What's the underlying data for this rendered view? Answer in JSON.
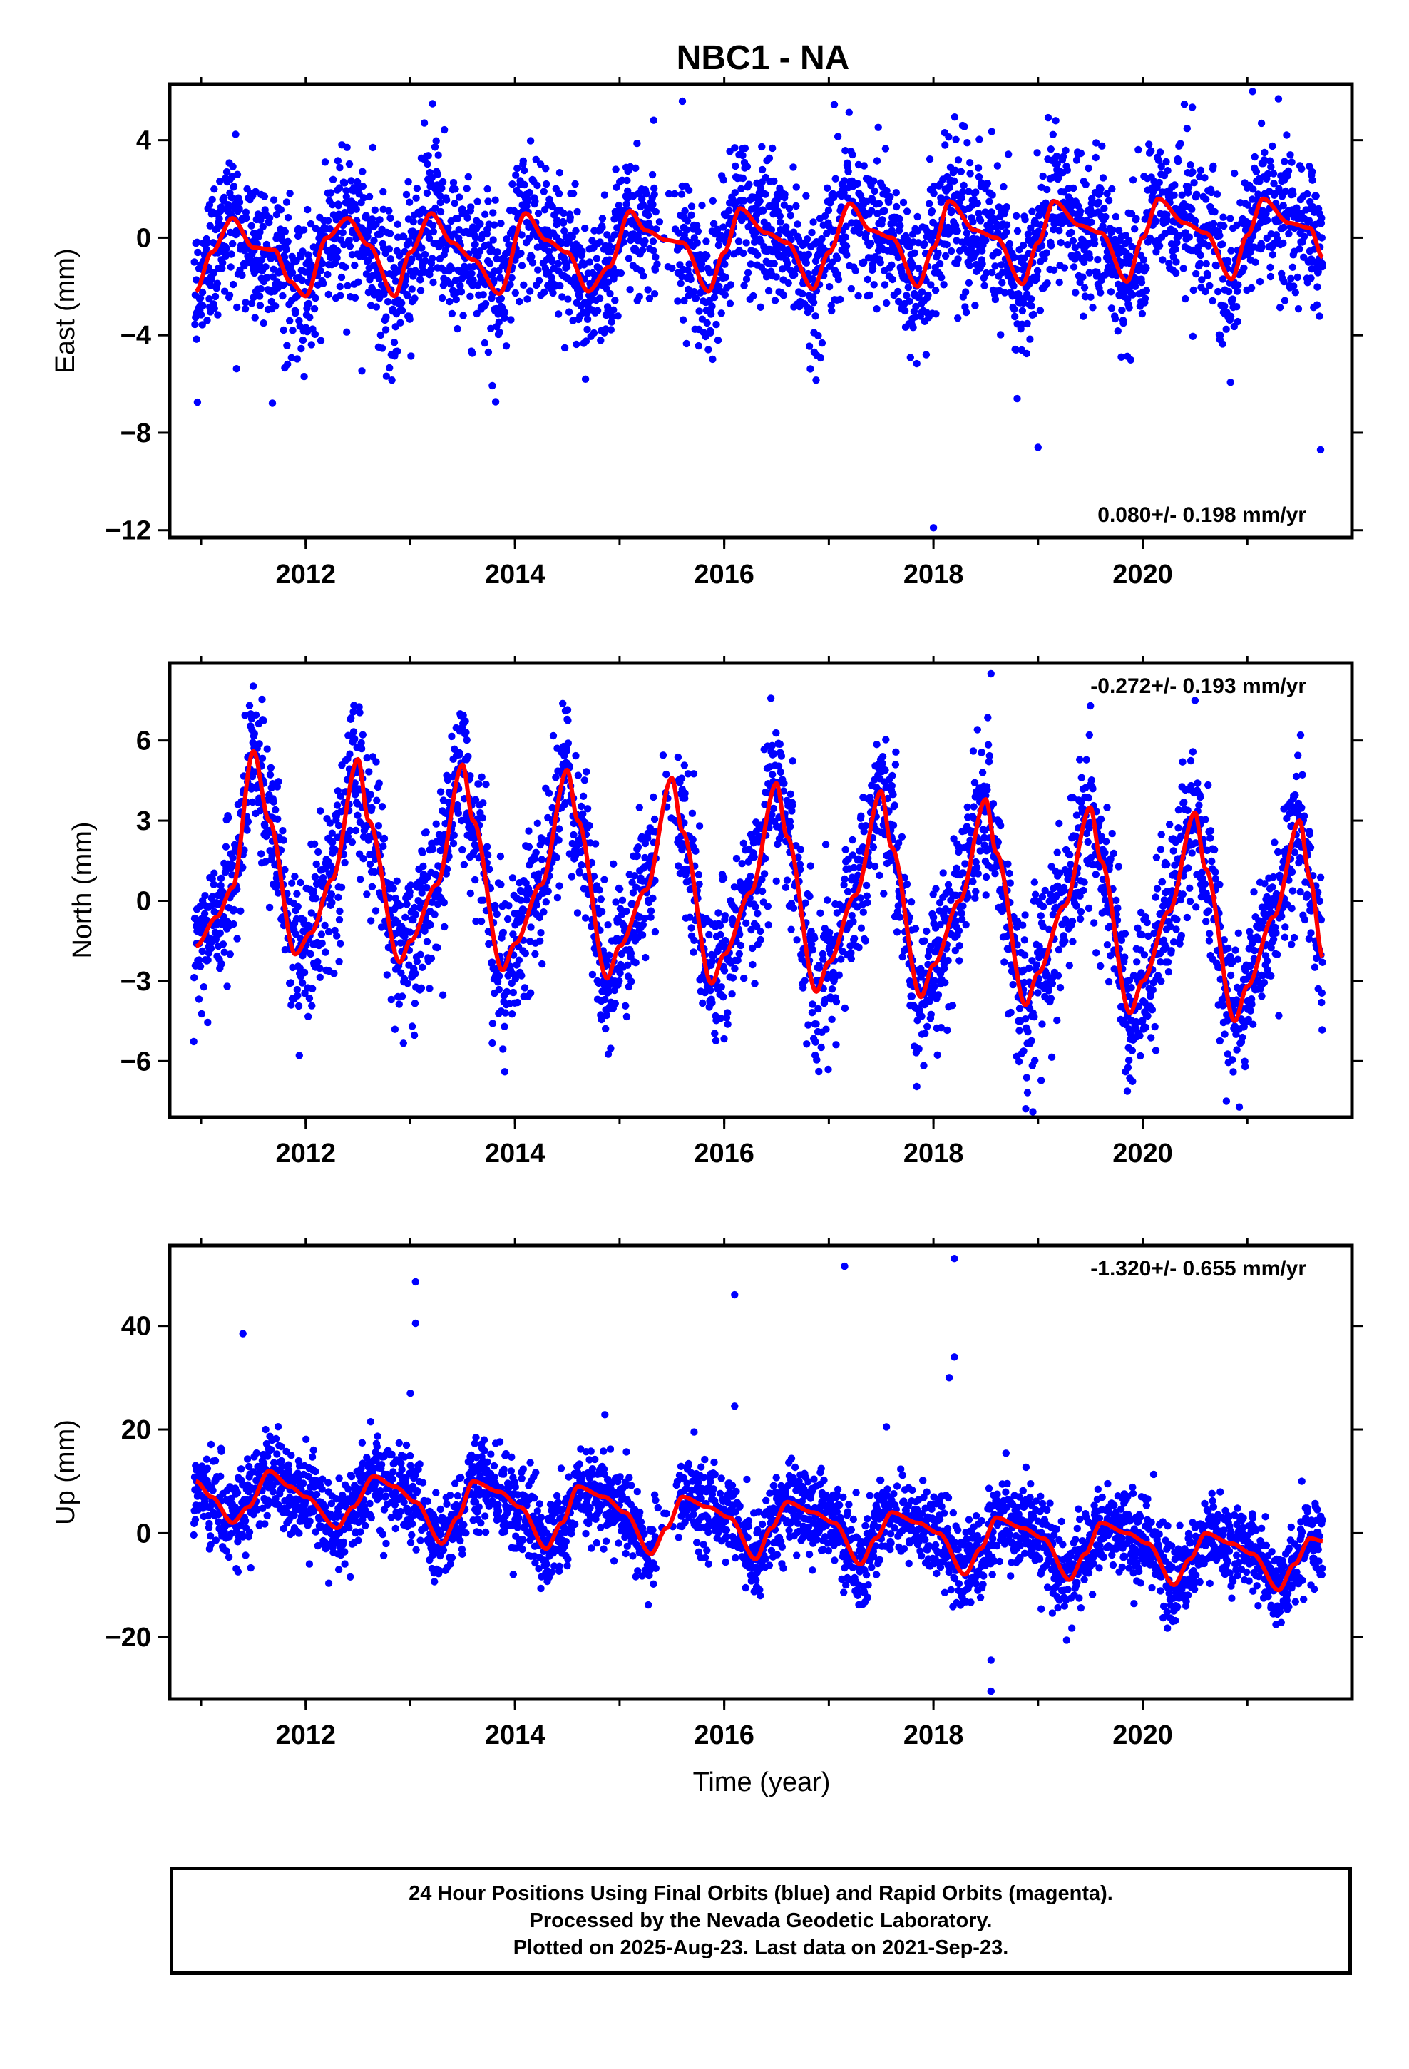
{
  "title": "NBC1 - NA",
  "colors": {
    "final": "#0000ff",
    "fit": "#ff0000"
  },
  "xaxis_label": "Time (year)",
  "footer": {
    "line1": "24 Hour Positions Using Final Orbits (blue) and Rapid Orbits (magenta).",
    "line2": "Processed by the Nevada Geodetic Laboratory.",
    "line3": "Plotted on 2025-Aug-23. Last data on 2021-Sep-23."
  },
  "chart_data": [
    {
      "type": "scatter",
      "component": "east",
      "ylabel": "East (mm)",
      "xlim": [
        2010.7,
        2022.0
      ],
      "ylim": [
        -12.3,
        6.3
      ],
      "xticks": [
        2012,
        2014,
        2016,
        2018,
        2020
      ],
      "yticks": [
        -12,
        -8,
        -4,
        0,
        4
      ],
      "rate_label": "0.080+/- 0.198 mm/yr",
      "rate_position": "bottom-right",
      "fit": {
        "x": [
          2010.95,
          2011.1,
          2011.3,
          2011.5,
          2011.7,
          2011.85,
          2012.0,
          2012.2,
          2012.4,
          2012.6,
          2012.85,
          2013.0,
          2013.2,
          2013.4,
          2013.6,
          2013.85,
          2014.1,
          2014.3,
          2014.5,
          2014.7,
          2014.9,
          2015.1,
          2015.25,
          2015.45,
          2015.6,
          2015.85,
          2016.0,
          2016.15,
          2016.4,
          2016.6,
          2016.85,
          2017.0,
          2017.2,
          2017.4,
          2017.6,
          2017.85,
          2018.0,
          2018.15,
          2018.4,
          2018.6,
          2018.85,
          2019.0,
          2019.15,
          2019.4,
          2019.6,
          2019.85,
          2020.0,
          2020.15,
          2020.4,
          2020.6,
          2020.85,
          2021.0,
          2021.15,
          2021.4,
          2021.6,
          2021.72
        ],
        "y": [
          -2.2,
          -0.6,
          0.8,
          -0.4,
          -0.5,
          -1.8,
          -2.4,
          0.0,
          0.8,
          -0.3,
          -2.4,
          -0.6,
          1.0,
          -0.2,
          -0.9,
          -2.3,
          1.0,
          -0.1,
          -0.6,
          -2.2,
          -1.2,
          1.1,
          0.3,
          -0.1,
          -0.2,
          -2.2,
          -0.6,
          1.2,
          0.2,
          -0.2,
          -2.1,
          -0.6,
          1.4,
          0.3,
          0.0,
          -2.0,
          -0.4,
          1.5,
          0.3,
          0.0,
          -1.9,
          -0.2,
          1.5,
          0.5,
          0.2,
          -1.8,
          0.0,
          1.6,
          0.6,
          0.2,
          -1.7,
          0.1,
          1.6,
          0.6,
          0.4,
          -0.8
        ]
      },
      "outliers": [
        {
          "x": 2018.0,
          "y": -11.9
        },
        {
          "x": 2019.0,
          "y": -8.6
        },
        {
          "x": 2021.05,
          "y": 6.0
        },
        {
          "x": 2015.6,
          "y": 5.6
        },
        {
          "x": 2018.8,
          "y": -6.6
        },
        {
          "x": 2021.7,
          "y": -8.7
        }
      ]
    },
    {
      "type": "scatter",
      "component": "north",
      "ylabel": "North (mm)",
      "xlim": [
        2010.7,
        2022.0
      ],
      "ylim": [
        -8.1,
        8.9
      ],
      "xticks": [
        2012,
        2014,
        2016,
        2018,
        2020
      ],
      "yticks": [
        -6,
        -3,
        0,
        3,
        6
      ],
      "rate_label": "-0.272+/- 0.193 mm/yr",
      "rate_position": "top-right",
      "fit": {
        "x": [
          2010.95,
          2011.15,
          2011.3,
          2011.5,
          2011.65,
          2011.9,
          2012.05,
          2012.25,
          2012.5,
          2012.6,
          2012.9,
          2013.0,
          2013.25,
          2013.5,
          2013.6,
          2013.88,
          2014.0,
          2014.25,
          2014.5,
          2014.6,
          2014.88,
          2015.0,
          2015.25,
          2015.5,
          2015.6,
          2015.88,
          2016.0,
          2016.25,
          2016.5,
          2016.6,
          2016.88,
          2017.0,
          2017.25,
          2017.5,
          2017.6,
          2017.88,
          2018.0,
          2018.25,
          2018.5,
          2018.6,
          2018.88,
          2019.0,
          2019.25,
          2019.5,
          2019.6,
          2019.88,
          2020.0,
          2020.25,
          2020.5,
          2020.6,
          2020.88,
          2021.0,
          2021.25,
          2021.5,
          2021.6,
          2021.72
        ],
        "y": [
          -1.7,
          -0.6,
          0.5,
          5.6,
          3.0,
          -2.0,
          -1.2,
          0.8,
          5.3,
          3.0,
          -2.3,
          -1.5,
          0.6,
          5.1,
          3.0,
          -2.6,
          -1.6,
          0.6,
          4.9,
          3.0,
          -2.9,
          -1.7,
          0.4,
          4.6,
          2.6,
          -3.1,
          -2.0,
          0.3,
          4.4,
          2.4,
          -3.4,
          -2.3,
          0.2,
          4.1,
          2.0,
          -3.6,
          -2.4,
          0.0,
          3.8,
          1.8,
          -3.9,
          -2.7,
          -0.2,
          3.5,
          1.5,
          -4.2,
          -3.0,
          -0.4,
          3.3,
          1.2,
          -4.5,
          -3.2,
          -0.6,
          3.0,
          0.8,
          -2.1
        ]
      },
      "outliers": [
        {
          "x": 2018.55,
          "y": 8.5
        },
        {
          "x": 2019.5,
          "y": 7.3
        },
        {
          "x": 2020.5,
          "y": 7.5
        },
        {
          "x": 2018.95,
          "y": -7.9
        },
        {
          "x": 2020.8,
          "y": -7.5
        }
      ]
    },
    {
      "type": "scatter",
      "component": "up",
      "ylabel": "Up (mm)",
      "xlim": [
        2010.7,
        2022.0
      ],
      "ylim": [
        -32.0,
        55.5
      ],
      "xticks": [
        2012,
        2014,
        2016,
        2018,
        2020
      ],
      "yticks": [
        -20,
        0,
        20,
        40
      ],
      "rate_label": "-1.320+/- 0.655 mm/yr",
      "rate_position": "top-right",
      "fit": {
        "x": [
          2010.95,
          2011.1,
          2011.3,
          2011.45,
          2011.65,
          2011.85,
          2012.0,
          2012.3,
          2012.45,
          2012.65,
          2012.85,
          2013.05,
          2013.3,
          2013.45,
          2013.6,
          2013.85,
          2014.05,
          2014.3,
          2014.45,
          2014.6,
          2014.85,
          2015.05,
          2015.3,
          2015.45,
          2015.6,
          2015.85,
          2016.05,
          2016.3,
          2016.45,
          2016.6,
          2016.85,
          2017.05,
          2017.3,
          2017.45,
          2017.6,
          2017.85,
          2018.05,
          2018.3,
          2018.45,
          2018.6,
          2018.85,
          2019.05,
          2019.3,
          2019.45,
          2019.6,
          2019.85,
          2020.05,
          2020.3,
          2020.45,
          2020.6,
          2020.85,
          2021.05,
          2021.3,
          2021.45,
          2021.6,
          2021.72
        ],
        "y": [
          10,
          7,
          2,
          5,
          12,
          9,
          7,
          1,
          5,
          11,
          9,
          6,
          -2,
          3,
          10,
          8,
          5,
          -3,
          2,
          9,
          7,
          4,
          -4,
          1,
          7,
          5,
          3,
          -5,
          1,
          6,
          4,
          2,
          -6,
          -1,
          4,
          2,
          0,
          -8,
          -3,
          3,
          1,
          -1,
          -9,
          -4,
          2,
          0,
          -2,
          -10,
          -5,
          0,
          -2,
          -4,
          -11,
          -6,
          -1,
          -1.5
        ]
      },
      "outliers": [
        {
          "x": 2011.4,
          "y": 38.5
        },
        {
          "x": 2013.0,
          "y": 27.0
        },
        {
          "x": 2013.05,
          "y": 40.5
        },
        {
          "x": 2013.05,
          "y": 48.5
        },
        {
          "x": 2016.1,
          "y": 46.0
        },
        {
          "x": 2016.1,
          "y": 24.5
        },
        {
          "x": 2017.15,
          "y": 51.5
        },
        {
          "x": 2017.55,
          "y": 20.5
        },
        {
          "x": 2018.15,
          "y": 30.0
        },
        {
          "x": 2018.2,
          "y": 34.0
        },
        {
          "x": 2018.2,
          "y": 53.0
        },
        {
          "x": 2018.55,
          "y": -24.5
        },
        {
          "x": 2018.55,
          "y": -30.5
        }
      ]
    }
  ]
}
